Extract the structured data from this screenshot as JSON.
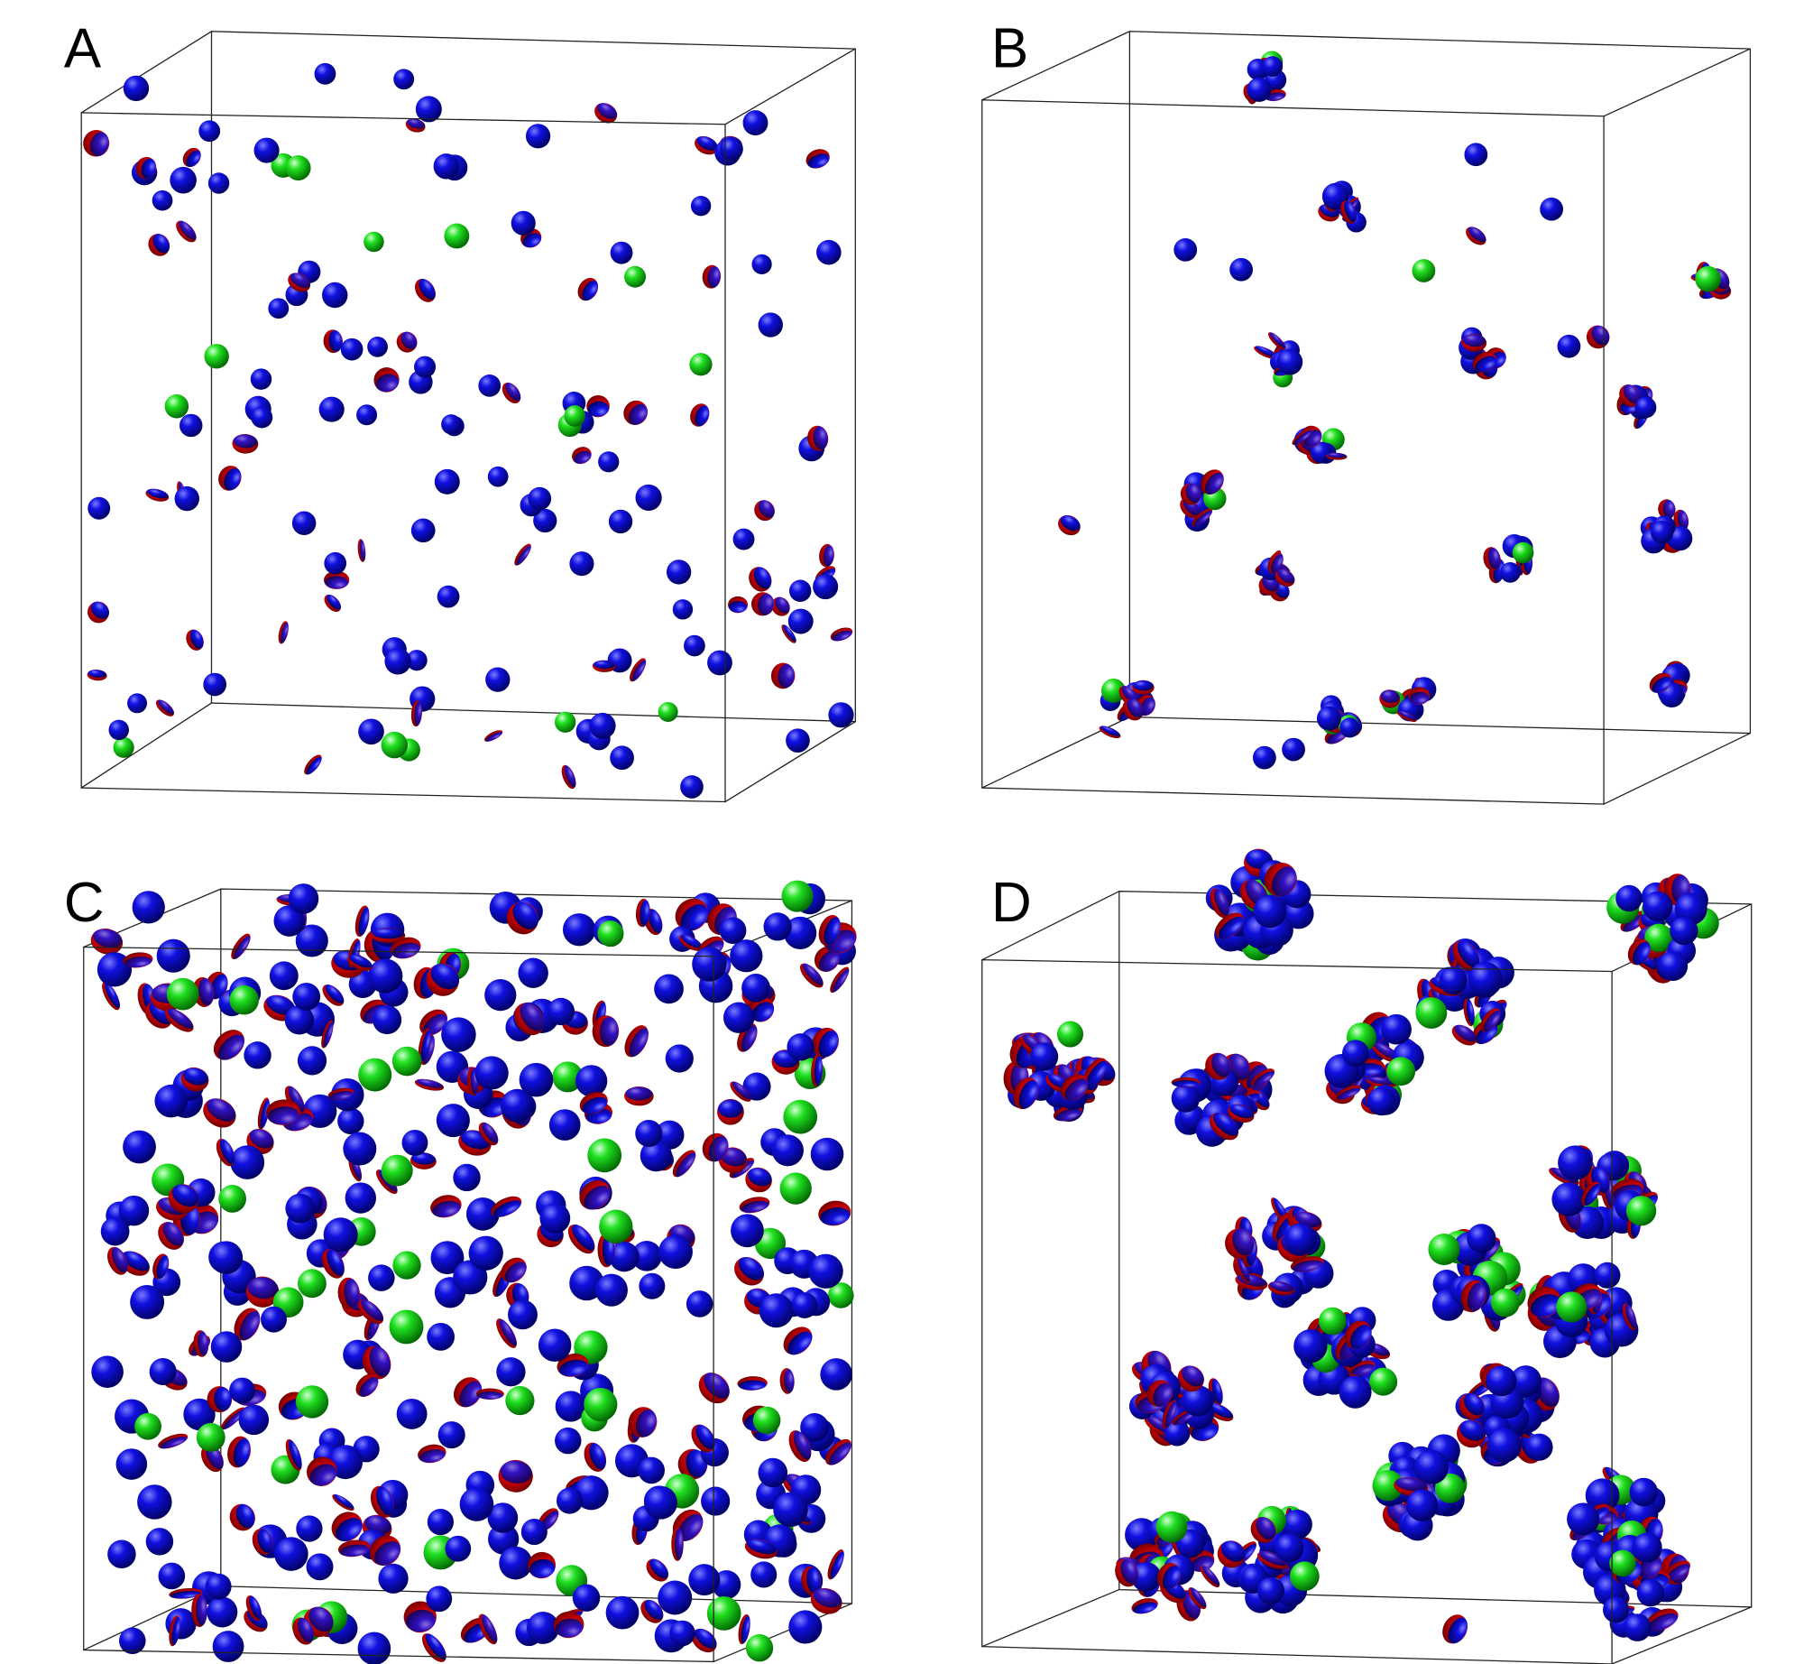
{
  "panels": {
    "labels": [
      "A",
      "B",
      "C",
      "D"
    ]
  }
}
